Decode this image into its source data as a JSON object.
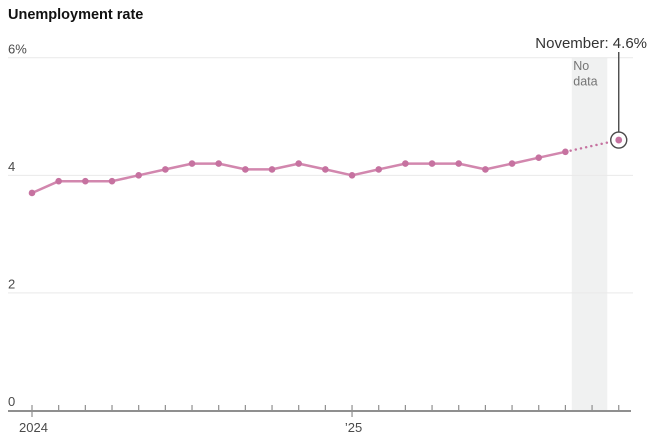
{
  "title": "Unemployment rate",
  "no_data": {
    "lines": [
      "No",
      "data"
    ]
  },
  "colors": {
    "line": "#d287ae",
    "marker": "#c672a0",
    "highlight_dot": "#c672a0",
    "callout": "#4a4a4a",
    "band": "#f0f1f1",
    "grid": "#e9e9e9",
    "axis": "#8f8f8f",
    "title_text": "#111111",
    "annotation_text": "#333333",
    "tick_text": "#4a4a4a",
    "no_data_text": "#757575"
  },
  "chart_data": {
    "type": "line",
    "title": "Unemployment rate",
    "unit": "%",
    "x": [
      "Jan 2024",
      "Feb 2024",
      "Mar 2024",
      "Apr 2024",
      "May 2024",
      "Jun 2024",
      "Jul 2024",
      "Aug 2024",
      "Sep 2024",
      "Oct 2024",
      "Nov 2024",
      "Dec 2024",
      "Jan 2025",
      "Feb 2025",
      "Mar 2025",
      "Apr 2025",
      "May 2025",
      "Jun 2025",
      "Jul 2025",
      "Aug 2025",
      "Sep 2025",
      "Oct 2025",
      "Nov 2025"
    ],
    "values": [
      3.7,
      3.9,
      3.9,
      3.9,
      4.0,
      4.1,
      4.2,
      4.2,
      4.1,
      4.1,
      4.2,
      4.1,
      4.0,
      4.1,
      4.2,
      4.2,
      4.2,
      4.1,
      4.2,
      4.3,
      4.4,
      null,
      4.6
    ],
    "no_data_months": [
      "Oct 2025"
    ],
    "dotted_segment": {
      "from": "Sep 2025",
      "to": "Nov 2025"
    },
    "highlight": {
      "month": "Nov 2025",
      "value": 4.6,
      "label": "November: 4.6%"
    },
    "y_ticks": [
      {
        "value": 0,
        "label": "0"
      },
      {
        "value": 2,
        "label": "2"
      },
      {
        "value": 4,
        "label": "4"
      },
      {
        "value": 6,
        "label": "6%"
      }
    ],
    "x_ticks": [
      {
        "label": "2024",
        "month_index": 0
      },
      {
        "label": "’25",
        "month_index": 12
      }
    ],
    "ylim": [
      0,
      6
    ],
    "grid": true,
    "legend": false
  }
}
